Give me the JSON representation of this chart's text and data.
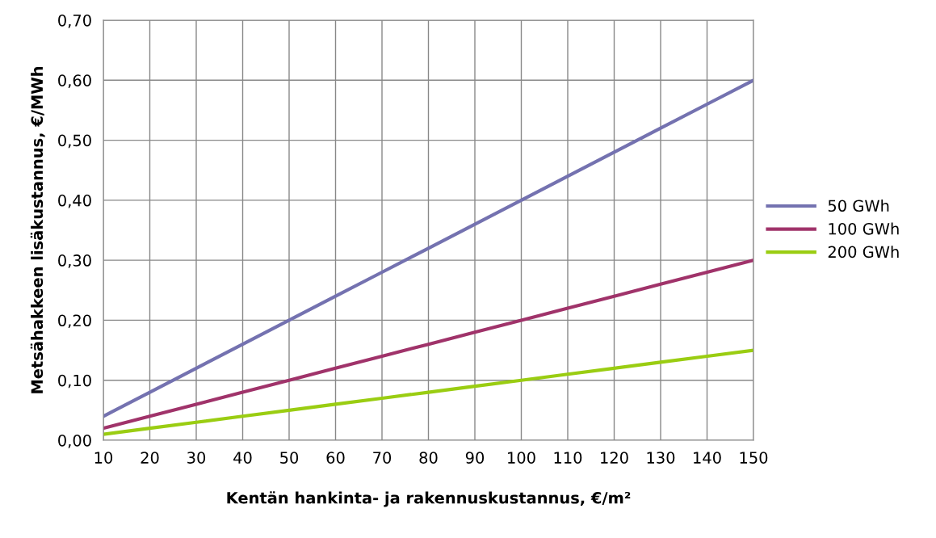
{
  "chart_data": {
    "type": "line",
    "xlabel": "Kentän hankinta- ja rakennuskustannus, €/m²",
    "ylabel": "Metsähakkeen lisäkustannus, €/MWh",
    "x": [
      10,
      20,
      30,
      40,
      50,
      60,
      70,
      80,
      90,
      100,
      110,
      120,
      130,
      140,
      150
    ],
    "series": [
      {
        "name": "50 GWh",
        "color": "#7472b0",
        "values": [
          0.04,
          0.08,
          0.12,
          0.16,
          0.2,
          0.24,
          0.28,
          0.32,
          0.36,
          0.4,
          0.44,
          0.48,
          0.52,
          0.56,
          0.6
        ]
      },
      {
        "name": "100 GWh",
        "color": "#a0336a",
        "values": [
          0.02,
          0.04,
          0.06,
          0.08,
          0.1,
          0.12,
          0.14,
          0.16,
          0.18,
          0.2,
          0.22,
          0.24,
          0.26,
          0.28,
          0.3
        ]
      },
      {
        "name": "200 GWh",
        "color": "#9acd12",
        "values": [
          0.01,
          0.02,
          0.03,
          0.04,
          0.05,
          0.06,
          0.07,
          0.08,
          0.09,
          0.1,
          0.11,
          0.12,
          0.13,
          0.14,
          0.15
        ]
      }
    ],
    "xlim": [
      10,
      150
    ],
    "xticks": [
      10,
      20,
      30,
      40,
      50,
      60,
      70,
      80,
      90,
      100,
      110,
      120,
      130,
      140,
      150
    ],
    "ylim": [
      0,
      0.7
    ],
    "yticks": [
      {
        "value": 0,
        "label": "0,00"
      },
      {
        "value": 0.1,
        "label": "0,10"
      },
      {
        "value": 0.2,
        "label": "0,20"
      },
      {
        "value": 0.3,
        "label": "0,30"
      },
      {
        "value": 0.4,
        "label": "0,40"
      },
      {
        "value": 0.5,
        "label": "0,50"
      },
      {
        "value": 0.6,
        "label": "0,60"
      },
      {
        "value": 0.7,
        "label": "0,70"
      }
    ],
    "grid": true,
    "legend": "right",
    "marker": "none",
    "line_style": "solid"
  }
}
